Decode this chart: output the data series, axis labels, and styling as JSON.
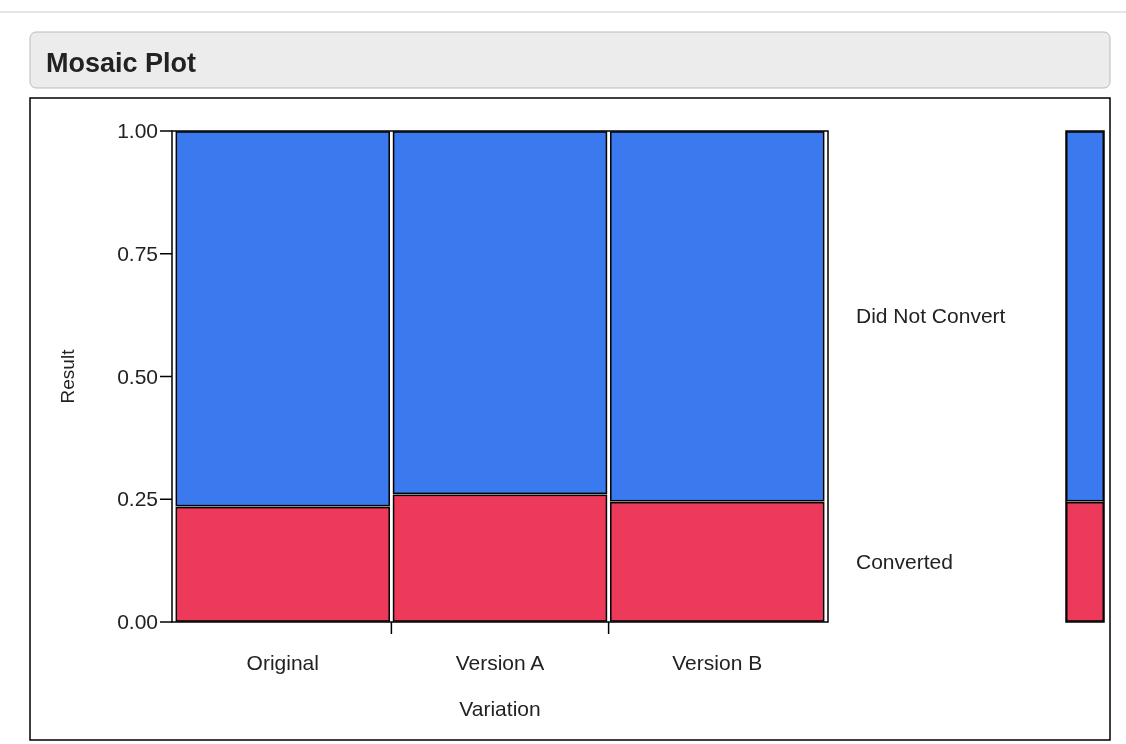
{
  "chart_data": [
    {
      "type": "bar",
      "title": "Mosaic Plot",
      "xlabel": "Variation",
      "ylabel": "Result",
      "categories": [
        "Original",
        "Version A",
        "Version B"
      ],
      "stacked": true,
      "ylim": [
        0,
        1
      ],
      "yticks": [
        {
          "value": 1,
          "label": "1.00"
        },
        {
          "value": 0.75,
          "label": "0.75"
        },
        {
          "value": 0.5,
          "label": "0.50"
        },
        {
          "value": 0.25,
          "label": "0.25"
        },
        {
          "value": 0,
          "label": "0.00"
        }
      ],
      "series": [
        {
          "name": "Converted",
          "color": "#ee3a5a",
          "values": [
            0.235,
            0.26,
            0.245
          ]
        },
        {
          "name": "Did Not Convert",
          "color": "#3a7aee",
          "values": [
            0.765,
            0.74,
            0.755
          ]
        }
      ]
    },
    {
      "type": "bar",
      "categories": [
        null
      ],
      "stacked": true,
      "ylim": [
        0,
        1
      ],
      "yticks": [
        {
          "value": 1,
          "label": null
        },
        {
          "value": 0.75,
          "label": null
        },
        {
          "value": 0.5,
          "label": null
        },
        {
          "value": 0.25,
          "label": null
        },
        {
          "value": 0,
          "label": null
        }
      ],
      "tick_labels": false,
      "series": [
        {
          "color": "#ee3a5a",
          "values": [
            0.245
          ]
        },
        {
          "color": "#3a7aee",
          "values": [
            0.755
          ]
        }
      ]
    }
  ]
}
